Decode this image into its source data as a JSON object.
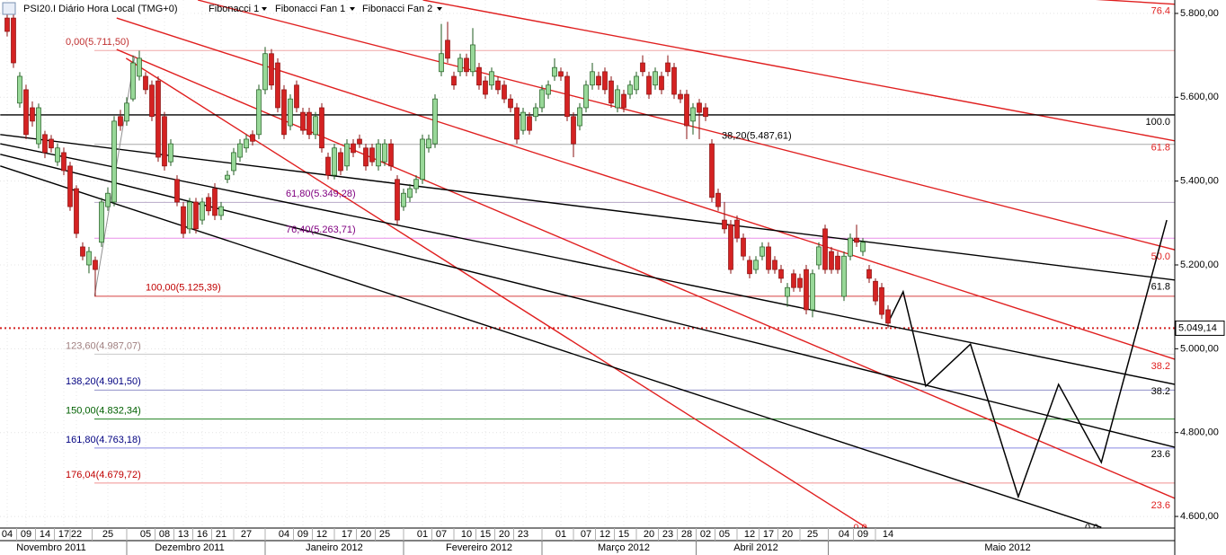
{
  "toolbar": {
    "symbol": "PSI20.I Diário Hora Local (TMG+0)",
    "items": [
      "Fibonacci 1",
      "Fibonacci Fan 1",
      "Fibonacci Fan 2"
    ]
  },
  "chart_data": {
    "type": "candlestick",
    "up_color": "#98d898",
    "down_color": "#d42222",
    "categories": [
      "04",
      null,
      null,
      "09",
      null,
      null,
      "14",
      null,
      null,
      "17",
      null,
      "22",
      null,
      null,
      null,
      null,
      "25",
      null,
      null,
      null,
      null,
      null,
      "05",
      null,
      null,
      "08",
      null,
      null,
      "13",
      null,
      null,
      "16",
      null,
      null,
      "21",
      null,
      null,
      null,
      "27",
      null,
      null,
      null,
      null,
      null,
      "04",
      null,
      null,
      "09",
      null,
      null,
      "12",
      null,
      null,
      null,
      "17",
      null,
      null,
      "20",
      null,
      null,
      "25",
      null,
      null,
      null,
      null,
      null,
      "01",
      null,
      null,
      "07",
      null,
      null,
      null,
      "10",
      null,
      null,
      "15",
      null,
      null,
      "20",
      null,
      null,
      "23",
      null,
      null,
      null,
      null,
      null,
      "01",
      null,
      null,
      null,
      "07",
      null,
      null,
      "12",
      null,
      null,
      "15",
      null,
      null,
      null,
      "20",
      null,
      null,
      "23",
      null,
      null,
      "28",
      null,
      null,
      "02",
      null,
      null,
      "05",
      null,
      null,
      null,
      "12",
      null,
      null,
      "17",
      null,
      null,
      "20",
      null,
      null,
      null,
      "25",
      null,
      null,
      null,
      null,
      "04",
      null,
      null,
      "09",
      null,
      null,
      null,
      "14"
    ],
    "months": [
      {
        "value": 7,
        "label": "Novembro 2011"
      },
      {
        "value": 29,
        "label": "Dezembro 2011"
      },
      {
        "value": 52,
        "label": "Janeiro 2012"
      },
      {
        "value": 75,
        "label": "Fevereiro 2012"
      },
      {
        "value": 98,
        "label": "Março 2012"
      },
      {
        "value": 119,
        "label": "Abril 2012"
      },
      {
        "value": 159,
        "label": "Maio 2012"
      }
    ],
    "open": [
      5789,
      5789,
      5586,
      5618,
      5575,
      5489,
      5511,
      5500,
      5446,
      5468,
      5436,
      5382,
      5243,
      5200,
      5211,
      5254,
      5339,
      5350,
      5554,
      5543,
      5596,
      5650,
      5650,
      5629,
      5639,
      5554,
      5446,
      5404,
      5339,
      5286,
      5350,
      5307,
      5361,
      5382,
      5318,
      5404,
      5425,
      5457,
      5479,
      5511,
      5511,
      5618,
      5704,
      5682,
      5618,
      5532,
      5629,
      5564,
      5564,
      5511,
      5575,
      5457,
      5414,
      5468,
      5436,
      5489,
      5500,
      5479,
      5479,
      5436,
      5446,
      5489,
      5404,
      5339,
      5361,
      5382,
      5404,
      5479,
      5489,
      5661,
      5736,
      5650,
      5661,
      5693,
      5661,
      5671,
      5639,
      5629,
      5639,
      5629,
      5596,
      5575,
      5521,
      5554,
      5554,
      5575,
      5607,
      5650,
      5661,
      5650,
      5554,
      5532,
      5575,
      5629,
      5650,
      5661,
      5639,
      5575,
      5607,
      5607,
      5618,
      5682,
      5650,
      5629,
      5650,
      5682,
      5671,
      5607,
      5607,
      5543,
      5586,
      5575,
      5489,
      5371,
      5307,
      5296,
      5307,
      5264,
      5211,
      5189,
      5221,
      5243,
      5211,
      5189,
      5125,
      5179,
      5168,
      5189,
      5093,
      5200,
      5286,
      5232,
      5221,
      5125,
      5221,
      5264,
      5232,
      5189,
      5161,
      5146,
      5093
    ],
    "high": [
      5798,
      5800,
      5660,
      5630,
      5590,
      5585,
      5520,
      5510,
      5490,
      5480,
      5446,
      5390,
      5254,
      5243,
      5220,
      5360,
      5385,
      5555,
      5570,
      5600,
      5700,
      5711,
      5660,
      5640,
      5650,
      5565,
      5500,
      5414,
      5350,
      5360,
      5360,
      5360,
      5371,
      5395,
      5350,
      5425,
      5479,
      5500,
      5511,
      5521,
      5630,
      5720,
      5715,
      5693,
      5629,
      5607,
      5640,
      5575,
      5575,
      5565,
      5586,
      5468,
      5489,
      5479,
      5500,
      5500,
      5511,
      5489,
      5489,
      5500,
      5500,
      5500,
      5414,
      5382,
      5393,
      5414,
      5511,
      5511,
      5607,
      5775,
      5780,
      5661,
      5704,
      5704,
      5765,
      5682,
      5650,
      5671,
      5650,
      5640,
      5607,
      5586,
      5575,
      5564,
      5586,
      5629,
      5640,
      5693,
      5671,
      5661,
      5564,
      5586,
      5640,
      5682,
      5661,
      5671,
      5650,
      5629,
      5618,
      5640,
      5661,
      5700,
      5661,
      5671,
      5661,
      5700,
      5682,
      5618,
      5618,
      5586,
      5596,
      5586,
      5500,
      5382,
      5350,
      5307,
      5318,
      5275,
      5221,
      5221,
      5254,
      5254,
      5221,
      5200,
      5157,
      5189,
      5179,
      5200,
      5189,
      5254,
      5296,
      5243,
      5232,
      5232,
      5275,
      5296,
      5264,
      5200,
      5168,
      5157,
      5104
    ],
    "low": [
      5745,
      5670,
      5575,
      5500,
      5530,
      5478,
      5455,
      5468,
      5436,
      5414,
      5329,
      5264,
      5211,
      5180,
      5125,
      5243,
      5329,
      5340,
      5520,
      5532,
      5590,
      5640,
      5607,
      5543,
      5446,
      5425,
      5436,
      5340,
      5264,
      5275,
      5275,
      5296,
      5318,
      5307,
      5307,
      5395,
      5414,
      5446,
      5468,
      5485,
      5500,
      5607,
      5618,
      5564,
      5500,
      5521,
      5564,
      5511,
      5500,
      5500,
      5468,
      5404,
      5404,
      5414,
      5425,
      5457,
      5479,
      5425,
      5436,
      5425,
      5436,
      5425,
      5296,
      5329,
      5350,
      5371,
      5393,
      5468,
      5479,
      5650,
      5682,
      5618,
      5650,
      5650,
      5650,
      5618,
      5596,
      5618,
      5607,
      5586,
      5564,
      5489,
      5511,
      5511,
      5543,
      5564,
      5596,
      5639,
      5639,
      5543,
      5457,
      5521,
      5564,
      5618,
      5618,
      5607,
      5575,
      5564,
      5564,
      5596,
      5607,
      5650,
      5596,
      5618,
      5607,
      5650,
      5596,
      5586,
      5500,
      5511,
      5500,
      5543,
      5350,
      5329,
      5275,
      5179,
      5254,
      5211,
      5168,
      5179,
      5211,
      5179,
      5179,
      5157,
      5100,
      5136,
      5136,
      5082,
      5075,
      5189,
      5179,
      5179,
      5179,
      5114,
      5211,
      5243,
      5221,
      5157,
      5104,
      5071,
      5049
    ],
    "close": [
      5757,
      5682,
      5650,
      5511,
      5543,
      5575,
      5468,
      5479,
      5479,
      5425,
      5339,
      5275,
      5221,
      5232,
      5189,
      5350,
      5371,
      5543,
      5532,
      5586,
      5682,
      5693,
      5618,
      5554,
      5457,
      5436,
      5489,
      5350,
      5275,
      5350,
      5286,
      5350,
      5329,
      5318,
      5339,
      5414,
      5468,
      5489,
      5500,
      5495,
      5618,
      5704,
      5629,
      5575,
      5511,
      5596,
      5575,
      5521,
      5511,
      5554,
      5479,
      5414,
      5479,
      5425,
      5489,
      5468,
      5489,
      5436,
      5446,
      5489,
      5489,
      5436,
      5307,
      5371,
      5382,
      5404,
      5500,
      5500,
      5596,
      5704,
      5693,
      5629,
      5693,
      5661,
      5725,
      5629,
      5607,
      5661,
      5618,
      5596,
      5575,
      5500,
      5564,
      5521,
      5575,
      5618,
      5629,
      5671,
      5650,
      5554,
      5489,
      5575,
      5629,
      5661,
      5629,
      5618,
      5586,
      5618,
      5575,
      5629,
      5650,
      5661,
      5607,
      5661,
      5618,
      5661,
      5607,
      5596,
      5532,
      5575,
      5564,
      5554,
      5361,
      5339,
      5286,
      5189,
      5264,
      5221,
      5179,
      5211,
      5243,
      5189,
      5189,
      5168,
      5146,
      5146,
      5146,
      5093,
      5179,
      5243,
      5189,
      5189,
      5189,
      5221,
      5264,
      5254,
      5254,
      5168,
      5114,
      5082,
      5061
    ],
    "xlim": [
      -1.14,
      185.57
    ],
    "ylim": [
      4568,
      5832
    ],
    "yticks": [
      {
        "value": 4600,
        "label": "4.600,00"
      },
      {
        "value": 4800,
        "label": "4.800,00"
      },
      {
        "value": 5000,
        "label": "5.000,00"
      },
      {
        "value": 5200,
        "label": "5.200,00"
      },
      {
        "value": 5400,
        "label": "5.400,00"
      },
      {
        "value": 5600,
        "label": "5.600,00"
      },
      {
        "value": 5800,
        "label": "5.800,00"
      }
    ],
    "grid": true,
    "last_price": {
      "value": 5049.14,
      "label": "5.049,14",
      "color": "#d42222"
    },
    "fib_levels": [
      {
        "value": 5711.5,
        "label": "0,00(5.711,50)",
        "color": "#c03030",
        "line_color": "#f0a8a8"
      },
      {
        "value": 5487.61,
        "label": "38,20(5.487,61)",
        "color": "#000000",
        "line_color": "#a8a8a8"
      },
      {
        "value": 5349.28,
        "label": "61,80(5.349,28)",
        "color": "#800080",
        "line_color": "#b8a8c8"
      },
      {
        "value": 5263.71,
        "label": "76,40(5.263,71)",
        "color": "#800080",
        "line_color": "#e890e8"
      },
      {
        "value": 5125.39,
        "label": "100,00(5.125,39)",
        "color": "#c00000",
        "line_color": "#d84040"
      },
      {
        "value": 4987.07,
        "label": "123,60(4.987,07)",
        "color": "#a08080",
        "line_color": "#c8c8c8"
      },
      {
        "value": 4901.5,
        "label": "138,20(4.901,50)",
        "color": "#000080",
        "line_color": "#9090c8"
      },
      {
        "value": 4832.34,
        "label": "150,00(4.832,34)",
        "color": "#006000",
        "line_color": "#208020"
      },
      {
        "value": 4763.18,
        "label": "161,80(4.763,18)",
        "color": "#000080",
        "line_color": "#8888e0"
      },
      {
        "value": 4679.72,
        "label": "176,04(4.679,72)",
        "color": "#c00000",
        "line_color": "#f09090"
      }
    ],
    "fan_lines": [
      {
        "label": "76.4",
        "color": "#e02020",
        "points": [
          [
            100,
            5900
          ],
          [
            185.6,
            5822
          ]
        ]
      },
      {
        "label": "61.8",
        "color": "#e02020",
        "points": [
          [
            66.1,
            5832
          ],
          [
            185.6,
            5496
          ]
        ]
      },
      {
        "label": "50.0",
        "color": "#e02020",
        "points": [
          [
            30.3,
            5832
          ],
          [
            185.6,
            5236
          ]
        ]
      },
      {
        "label": "38.2",
        "color": "#e02020",
        "points": [
          [
            17.4,
            5789
          ],
          [
            185.6,
            4975
          ]
        ]
      },
      {
        "label": "23.6",
        "color": "#e02020",
        "points": [
          [
            17.4,
            5714
          ],
          [
            185.6,
            4643
          ]
        ]
      },
      {
        "label": "0.0",
        "color": "#e02020",
        "points": [
          [
            18.9,
            5693
          ],
          [
            137.1,
            4568
          ]
        ]
      },
      {
        "label": "100.0",
        "color": "#000000",
        "points": [
          [
            -1.1,
            5558
          ],
          [
            185.6,
            5558
          ]
        ]
      },
      {
        "label": "61.8",
        "color": "#000000",
        "points": [
          [
            -1.1,
            5511
          ],
          [
            185.6,
            5164
          ]
        ]
      },
      {
        "label": "38.2",
        "color": "#000000",
        "points": [
          [
            -1.1,
            5489
          ],
          [
            185.6,
            4915
          ]
        ]
      },
      {
        "label": "23.6",
        "color": "#000000",
        "points": [
          [
            -1.1,
            5464
          ],
          [
            185.6,
            4765
          ]
        ]
      },
      {
        "label": "0.0",
        "color": "#000000",
        "points": [
          [
            -1.1,
            5436
          ],
          [
            173.9,
            4574
          ]
        ]
      },
      {
        "color": "#909090",
        "points": [
          [
            13.9,
            5127
          ],
          [
            20.3,
            5699
          ]
        ]
      }
    ],
    "projection": {
      "color": "#000000",
      "points": [
        [
          140.3,
          5071
        ],
        [
          142.4,
          5136
        ],
        [
          146,
          4911
        ],
        [
          153.1,
          5011
        ],
        [
          160.7,
          4647
        ],
        [
          167.1,
          4915
        ],
        [
          173.9,
          4729
        ],
        [
          184.3,
          5307
        ]
      ]
    }
  }
}
